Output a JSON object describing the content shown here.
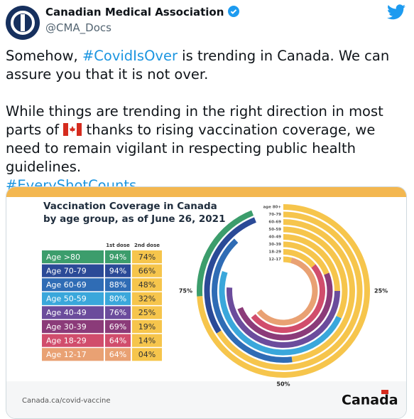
{
  "tweet": {
    "author": "Canadian Medical Association",
    "handle": "@CMA_Docs",
    "paragraph_1": [
      "Somehow, ",
      "#CovidIsOver",
      " is trending in Canada. We can assure you that it is not over."
    ],
    "paragraph_2": [
      "While things are trending in the right direction in most parts of",
      " thanks to rising vaccination coverage, we need to remain vigilant in respecting public health guidelines.",
      "#EveryShotCounts"
    ]
  },
  "infographic": {
    "title": [
      "Vaccination Coverage in Canada",
      "by age group, as of June 26, 2021"
    ],
    "headers": [
      "1st dose",
      "2nd dose"
    ],
    "groups": [
      "Age >80",
      "Age 70-79",
      "Age 60-69",
      "Age 50-59",
      "Age 40-49",
      "Age 30-39",
      "Age 18-29",
      "Age 12-17"
    ],
    "ring_labels": [
      "age 80+",
      "70-79",
      "60-69",
      "50-59",
      "40-49",
      "30-39",
      "18-29",
      "12-17"
    ],
    "colors": [
      "#3c9d6c",
      "#2b4a97",
      "#2f6cb5",
      "#3aa7db",
      "#6b4c9c",
      "#8b3b79",
      "#d14d6c",
      "#e9a173"
    ],
    "second_color": "#f6c54c",
    "first_dose": [
      94,
      94,
      88,
      80,
      76,
      69,
      64,
      64
    ],
    "first_dose_labels": [
      "94%",
      "94%",
      "88%",
      "80%",
      "76%",
      "69%",
      "64%",
      "64%"
    ],
    "second_dose": [
      74,
      66,
      48,
      32,
      25,
      19,
      14,
      4
    ],
    "second_dose_labels": [
      "74%",
      "66%",
      "48%",
      "32%",
      "25%",
      "19%",
      "14%",
      "04%"
    ],
    "scale_labels": [
      "25%",
      "50%",
      "75%"
    ],
    "footer_url": "Canada.ca/covid-vaccine",
    "wordmark": "Canada"
  }
}
